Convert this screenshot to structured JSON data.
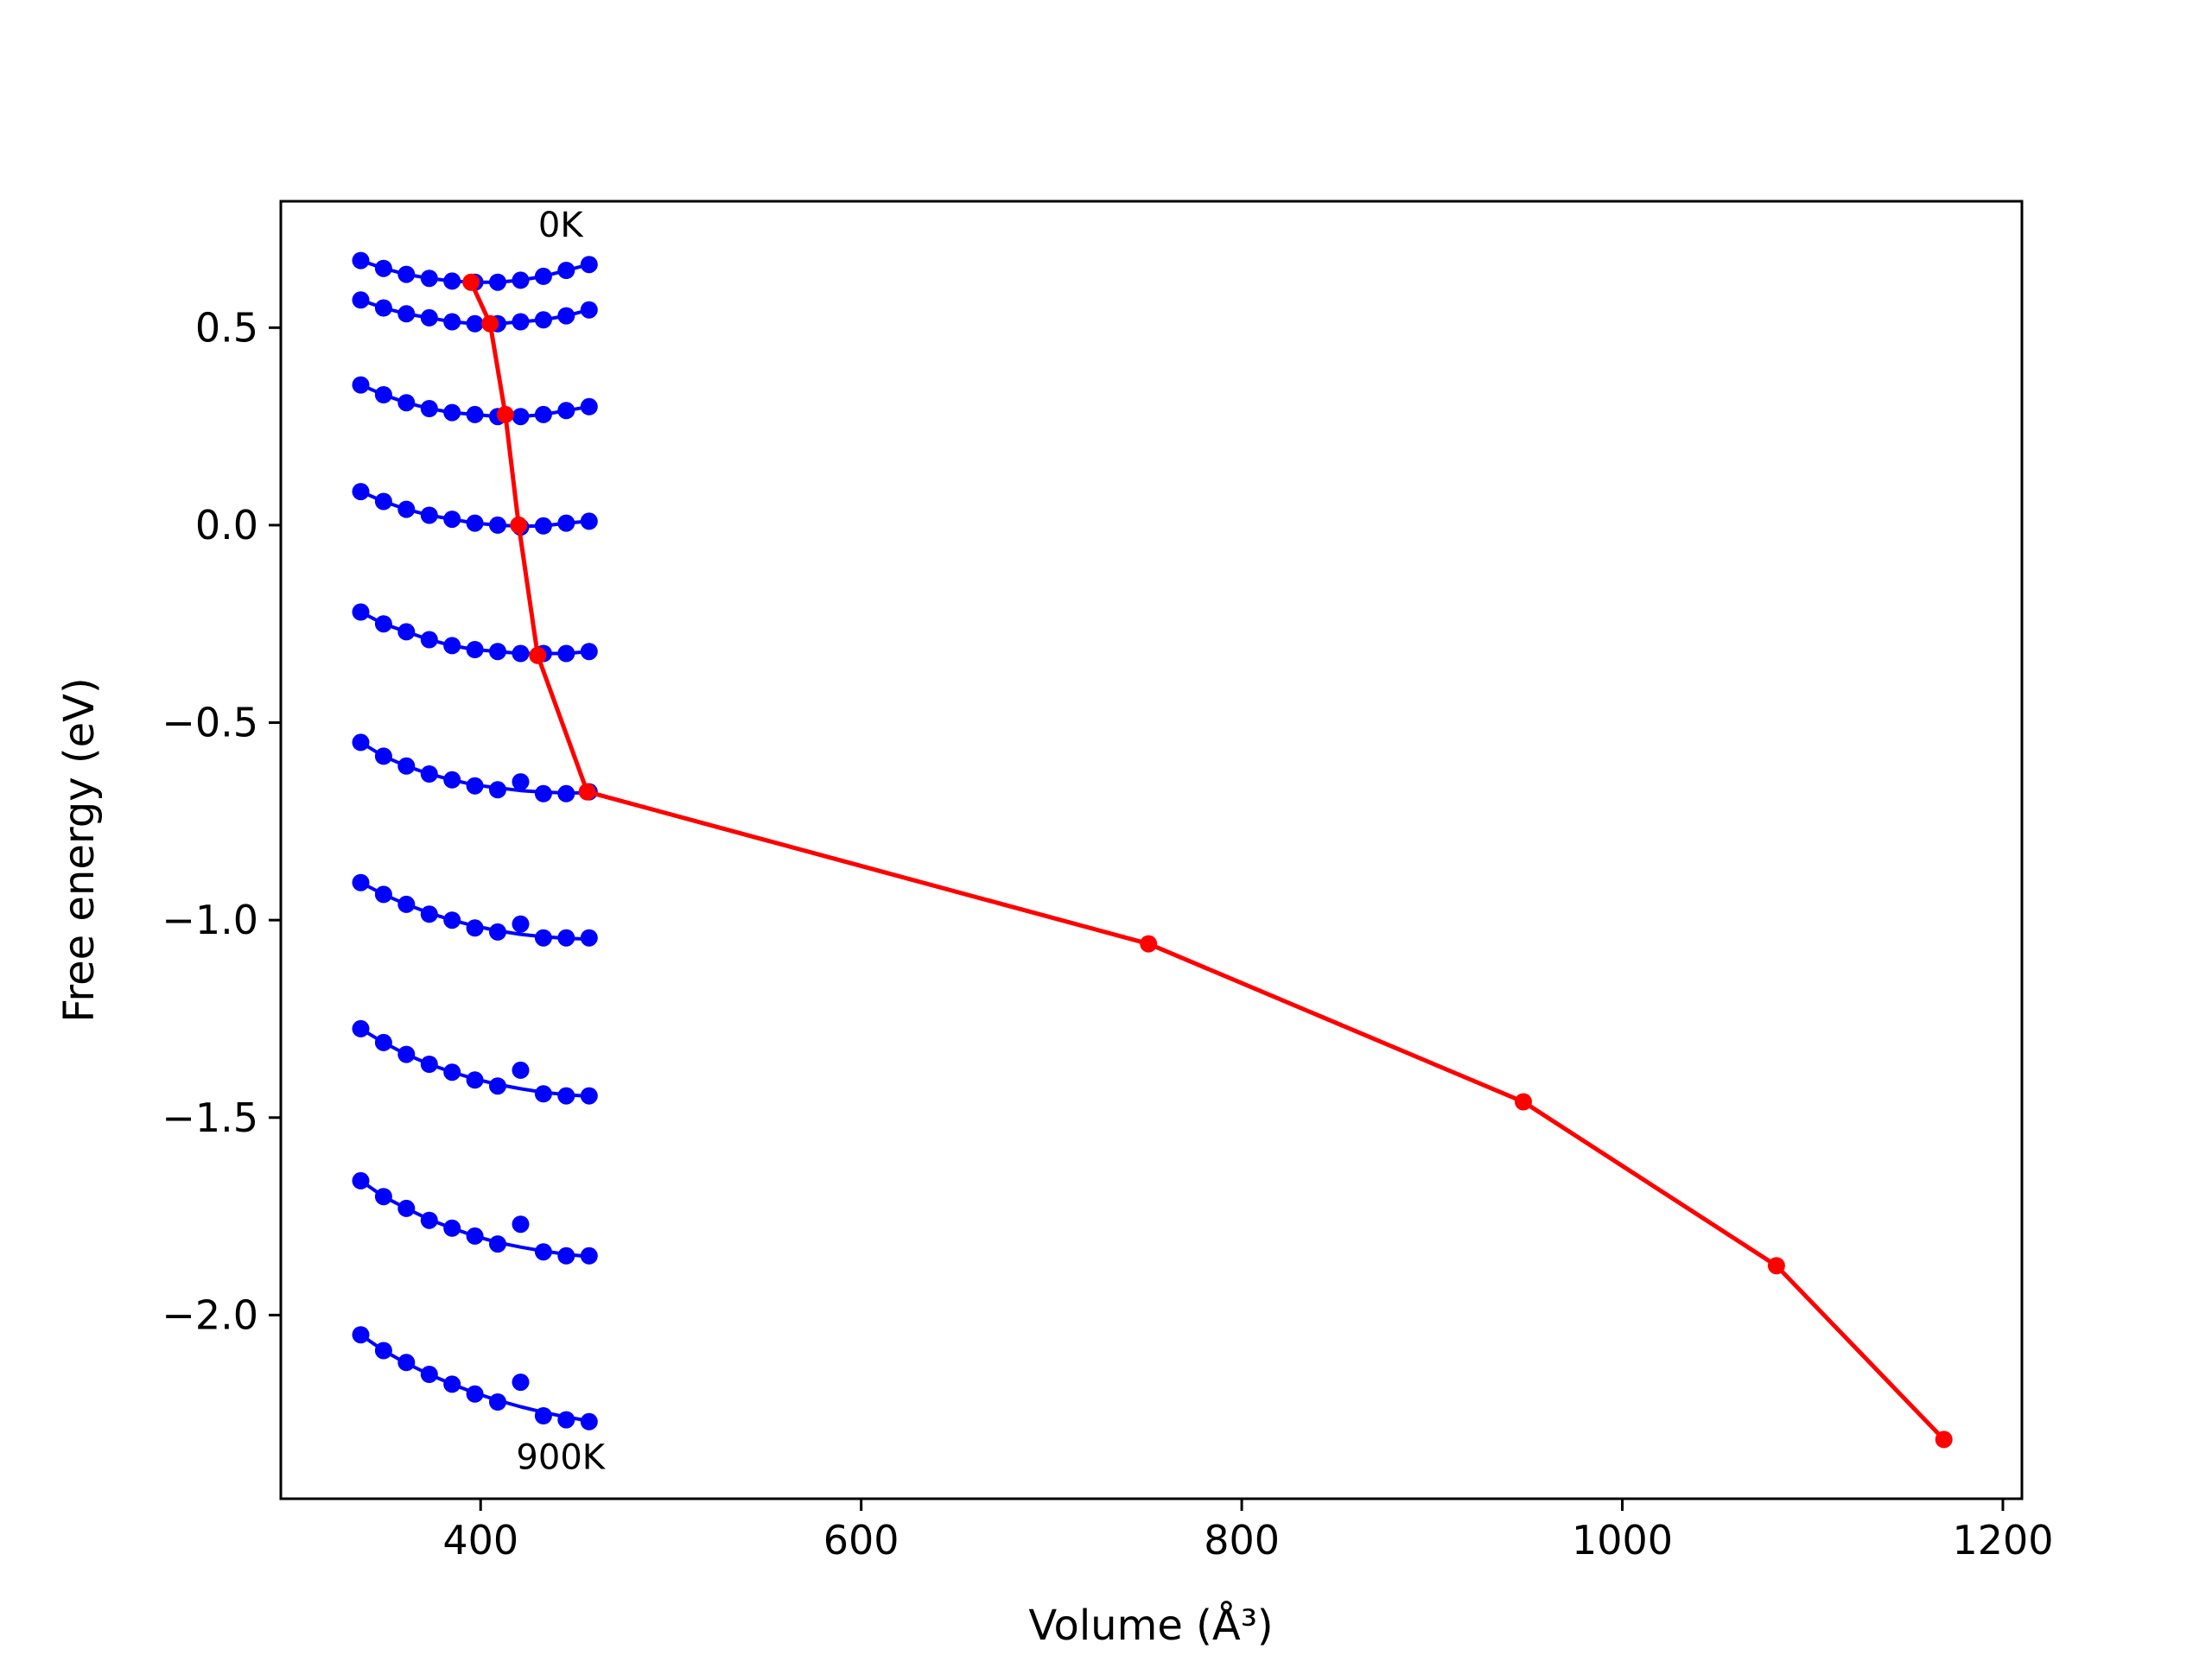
{
  "colors": {
    "fit_series": "#0000ff",
    "envelope": "#ff0000",
    "axes": "#000000",
    "background": "#ffffff"
  },
  "chart_data": {
    "type": "line",
    "title": "",
    "xlabel": "Volume (Å³)",
    "ylabel": "Free energy (eV)",
    "xlim": [
      295,
      1210
    ],
    "ylim": [
      -2.465,
      0.82
    ],
    "xticks": [
      400,
      600,
      800,
      1000,
      1200
    ],
    "yticks": [
      0.5,
      0.0,
      -0.5,
      -1.0,
      -1.5,
      -2.0
    ],
    "xtick_labels": [
      "400",
      "600",
      "800",
      "1000",
      "1200"
    ],
    "ytick_labels": [
      "0.5",
      "0.0",
      "−0.5",
      "−1.0",
      "−1.5",
      "−2.0"
    ],
    "grid": false,
    "legend": "none",
    "annotations": [
      {
        "text": "0K",
        "x": 442,
        "y": 0.73
      },
      {
        "text": "900K",
        "x": 442,
        "y": -2.39
      }
    ],
    "volumes": [
      337,
      349,
      361,
      373,
      385,
      397,
      409,
      421,
      433,
      445,
      457
    ],
    "isotherms": [
      {
        "values": [
          0.67,
          0.65,
          0.635,
          0.625,
          0.618,
          0.615,
          0.615,
          0.62,
          0.63,
          0.645,
          0.66
        ]
      },
      {
        "values": [
          0.57,
          0.55,
          0.535,
          0.525,
          0.515,
          0.51,
          0.51,
          0.515,
          0.52,
          0.53,
          0.545
        ]
      },
      {
        "values": [
          0.355,
          0.33,
          0.31,
          0.295,
          0.285,
          0.28,
          0.275,
          0.275,
          0.28,
          0.29,
          0.3
        ]
      },
      {
        "values": [
          0.085,
          0.06,
          0.04,
          0.025,
          0.015,
          0.005,
          0.0,
          -0.005,
          -0.002,
          0.005,
          0.01
        ]
      },
      {
        "values": [
          -0.22,
          -0.25,
          -0.27,
          -0.29,
          -0.305,
          -0.315,
          -0.32,
          -0.325,
          -0.325,
          -0.325,
          -0.32
        ]
      },
      {
        "values": [
          -0.55,
          -0.585,
          -0.61,
          -0.63,
          -0.645,
          -0.66,
          -0.67,
          -0.65,
          -0.68,
          -0.68,
          -0.675
        ]
      },
      {
        "values": [
          -0.905,
          -0.935,
          -0.96,
          -0.985,
          -1.0,
          -1.02,
          -1.03,
          -1.01,
          -1.045,
          -1.045,
          -1.045
        ]
      },
      {
        "values": [
          -1.275,
          -1.31,
          -1.34,
          -1.365,
          -1.385,
          -1.405,
          -1.42,
          -1.38,
          -1.44,
          -1.445,
          -1.445
        ]
      },
      {
        "values": [
          -1.66,
          -1.7,
          -1.73,
          -1.76,
          -1.78,
          -1.8,
          -1.82,
          -1.77,
          -1.84,
          -1.85,
          -1.85
        ]
      },
      {
        "values": [
          -2.05,
          -2.09,
          -2.12,
          -2.15,
          -2.175,
          -2.2,
          -2.22,
          -2.17,
          -2.255,
          -2.265,
          -2.27
        ]
      }
    ],
    "fit_curves": [
      {
        "values": [
          0.67,
          0.65,
          0.635,
          0.625,
          0.618,
          0.615,
          0.615,
          0.62,
          0.63,
          0.645,
          0.66
        ]
      },
      {
        "values": [
          0.57,
          0.55,
          0.535,
          0.525,
          0.515,
          0.51,
          0.51,
          0.515,
          0.52,
          0.53,
          0.545
        ]
      },
      {
        "values": [
          0.355,
          0.33,
          0.31,
          0.295,
          0.285,
          0.28,
          0.275,
          0.275,
          0.28,
          0.29,
          0.3
        ]
      },
      {
        "values": [
          0.085,
          0.06,
          0.04,
          0.025,
          0.015,
          0.005,
          0.0,
          -0.003,
          -0.002,
          0.005,
          0.01
        ]
      },
      {
        "values": [
          -0.22,
          -0.25,
          -0.27,
          -0.29,
          -0.305,
          -0.315,
          -0.32,
          -0.325,
          -0.325,
          -0.325,
          -0.32
        ]
      },
      {
        "values": [
          -0.55,
          -0.585,
          -0.61,
          -0.63,
          -0.645,
          -0.658,
          -0.665,
          -0.672,
          -0.676,
          -0.678,
          -0.678
        ]
      },
      {
        "values": [
          -0.905,
          -0.935,
          -0.96,
          -0.982,
          -1.0,
          -1.015,
          -1.027,
          -1.036,
          -1.042,
          -1.046,
          -1.048
        ]
      },
      {
        "values": [
          -1.275,
          -1.31,
          -1.34,
          -1.365,
          -1.385,
          -1.402,
          -1.416,
          -1.427,
          -1.436,
          -1.442,
          -1.446
        ]
      },
      {
        "values": [
          -1.66,
          -1.7,
          -1.73,
          -1.758,
          -1.78,
          -1.8,
          -1.816,
          -1.828,
          -1.838,
          -1.846,
          -1.852
        ]
      },
      {
        "values": [
          -2.05,
          -2.09,
          -2.122,
          -2.15,
          -2.175,
          -2.197,
          -2.216,
          -2.232,
          -2.246,
          -2.258,
          -2.268
        ]
      }
    ],
    "envelope": {
      "x": [
        395,
        405,
        413,
        420,
        430,
        456,
        751,
        948,
        1081,
        1169
      ],
      "y": [
        0.615,
        0.51,
        0.28,
        0.0,
        -0.33,
        -0.675,
        -1.06,
        -1.46,
        -1.875,
        -2.315
      ]
    }
  }
}
